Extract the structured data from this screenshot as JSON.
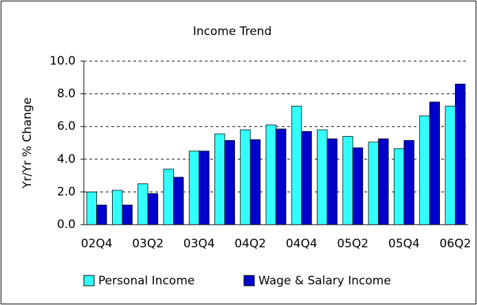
{
  "chart_data": {
    "type": "bar",
    "title": "Income Trend",
    "ylabel": "Yr/Yr % Change",
    "categories": [
      "02Q4",
      null,
      "03Q2",
      null,
      "03Q4",
      null,
      "04Q2",
      null,
      "04Q4",
      null,
      "05Q2",
      null,
      "05Q4",
      null,
      "06Q2"
    ],
    "series": [
      {
        "name": "Personal Income",
        "color": "#33ffff",
        "values": [
          2.0,
          2.1,
          2.5,
          3.4,
          4.5,
          5.55,
          5.8,
          6.1,
          7.25,
          5.8,
          5.4,
          5.05,
          4.65,
          6.65,
          7.25
        ]
      },
      {
        "name": "Wage & Salary Income",
        "color": "#0000cc",
        "values": [
          1.2,
          1.2,
          1.9,
          2.9,
          4.5,
          5.15,
          5.2,
          5.85,
          5.7,
          5.25,
          4.7,
          5.25,
          5.15,
          7.5,
          8.6
        ]
      }
    ],
    "ylim": [
      0,
      10
    ],
    "yticks": [
      {
        "value": 0,
        "label": "0.0"
      },
      {
        "value": 2,
        "label": "2.0"
      },
      {
        "value": 4,
        "label": "4.0"
      },
      {
        "value": 6,
        "label": "6.0"
      },
      {
        "value": 8,
        "label": "8.0"
      },
      {
        "value": 10,
        "label": "10.0"
      }
    ],
    "grid": true,
    "legend": "bottom"
  }
}
